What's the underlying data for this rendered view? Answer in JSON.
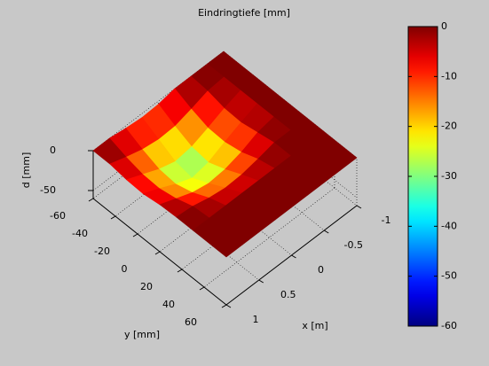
{
  "chart_data": {
    "type": "surface",
    "title": "Eindringtiefe [mm]",
    "xlabel": "x  [m]",
    "ylabel": "y   [mm]",
    "zlabel": "d   [mm]",
    "x": [
      -1,
      -0.75,
      -0.5,
      -0.25,
      0,
      0.25,
      0.5,
      0.75,
      1
    ],
    "y": [
      -60,
      -45,
      -30,
      -15,
      0,
      15,
      30,
      45,
      60
    ],
    "z": [
      [
        0,
        0,
        0,
        0,
        -4,
        -5,
        -3,
        0,
        0
      ],
      [
        0,
        0,
        -2,
        -9,
        -15,
        -16,
        -13,
        -7,
        0
      ],
      [
        0,
        0,
        -7,
        -16,
        -24,
        -27,
        -21,
        -12,
        -3
      ],
      [
        0,
        0,
        -8,
        -17,
        -27,
        -31,
        -23,
        -13,
        -4
      ],
      [
        0,
        0,
        -4,
        -13,
        -19,
        -21,
        -17,
        -9,
        -1
      ],
      [
        0,
        0,
        0,
        -5,
        -9,
        -10,
        -7,
        -2,
        0
      ],
      [
        0,
        0,
        0,
        0,
        0,
        0,
        0,
        0,
        0
      ],
      [
        0,
        0,
        0,
        0,
        0,
        0,
        0,
        0,
        0
      ],
      [
        0,
        0,
        0,
        0,
        0,
        0,
        0,
        0,
        0
      ]
    ],
    "xlim": [
      -1,
      1
    ],
    "xticks": [
      -1,
      -0.5,
      0,
      0.5,
      1
    ],
    "ylim": [
      -60,
      60
    ],
    "yticks": [
      -60,
      -40,
      -20,
      0,
      20,
      40,
      60
    ],
    "zlim": [
      -60,
      0
    ],
    "zticks": [
      -50,
      0
    ],
    "colormap": "jet",
    "grid": true,
    "colorbar": {
      "clim": [
        -60,
        0
      ],
      "ticks": [
        0,
        -10,
        -20,
        -30,
        -40,
        -50,
        -60
      ]
    }
  }
}
